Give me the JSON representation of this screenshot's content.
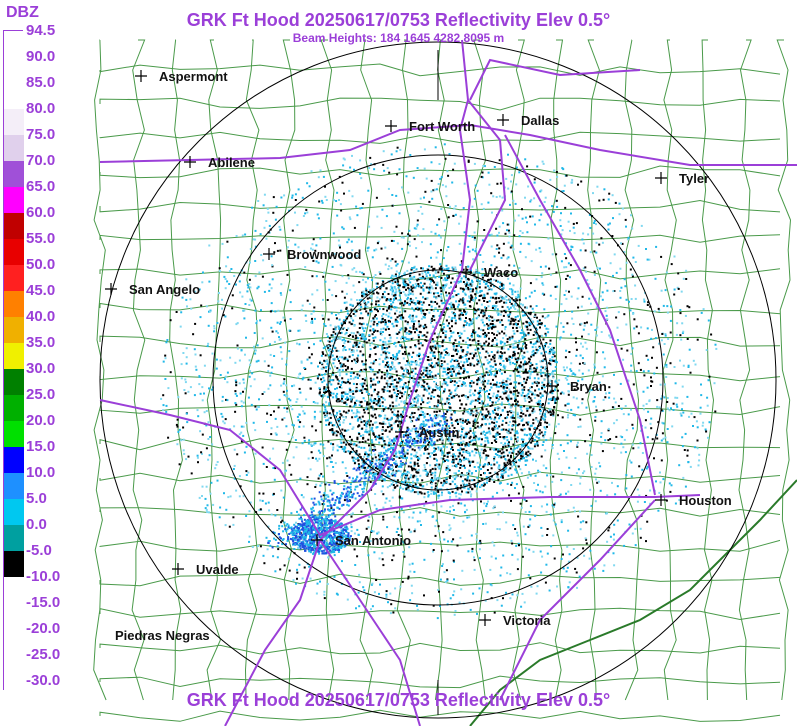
{
  "header": {
    "title": "GRK Ft Hood 20250617/0753 Reflectivity Elev 0.5°",
    "subtitle": "Beam Heights: 184 1645 4282 8095 m",
    "footer": "GRK Ft Hood 20250617/0753 Reflectivity Elev 0.5°"
  },
  "legend": {
    "unit": "DBZ",
    "levels": [
      {
        "label": "94.5",
        "color": "#ffffff"
      },
      {
        "label": "90.0",
        "color": "#ffffff"
      },
      {
        "label": "85.0",
        "color": "#ffffff"
      },
      {
        "label": "80.0",
        "color": "#f4eef8"
      },
      {
        "label": "75.0",
        "color": "#e0d0ec"
      },
      {
        "label": "70.0",
        "color": "#a050d8"
      },
      {
        "label": "65.0",
        "color": "#ff00ff"
      },
      {
        "label": "60.0",
        "color": "#c00000"
      },
      {
        "label": "55.0",
        "color": "#e80000"
      },
      {
        "label": "50.0",
        "color": "#ff2020"
      },
      {
        "label": "45.0",
        "color": "#ff8000"
      },
      {
        "label": "40.0",
        "color": "#f0b000"
      },
      {
        "label": "35.0",
        "color": "#f0f000"
      },
      {
        "label": "30.0",
        "color": "#008000"
      },
      {
        "label": "25.0",
        "color": "#00b000"
      },
      {
        "label": "20.0",
        "color": "#00e000"
      },
      {
        "label": "15.0",
        "color": "#0000ff"
      },
      {
        "label": "10.0",
        "color": "#1e90ff"
      },
      {
        "label": "5.0",
        "color": "#00c8f0"
      },
      {
        "label": "0.0",
        "color": "#00a0a0"
      },
      {
        "label": "-5.0",
        "color": "#000000"
      },
      {
        "label": "-10.0",
        "color": "#ffffff"
      },
      {
        "label": "-15.0",
        "color": "#ffffff"
      },
      {
        "label": "-20.0",
        "color": "#ffffff"
      },
      {
        "label": "-25.0",
        "color": "#ffffff"
      },
      {
        "label": "-30.0",
        "color": "#ffffff"
      }
    ]
  },
  "map": {
    "colors": {
      "counties": "#4a9a4a",
      "highways": "#9b3fd8",
      "range_rings": "#000000",
      "echo_light": "#7fd8f0",
      "echo_mid": "#20b8e8",
      "echo_strong": "#2050e0",
      "echo_weak": "#000000"
    },
    "cities": [
      {
        "name": "Aspermont"
      },
      {
        "name": "Fort Worth"
      },
      {
        "name": "Dallas"
      },
      {
        "name": "Abilene"
      },
      {
        "name": "Tyler"
      },
      {
        "name": "Brownwood"
      },
      {
        "name": "Waco"
      },
      {
        "name": "San Angelo"
      },
      {
        "name": "Bryan"
      },
      {
        "name": "Austin"
      },
      {
        "name": "Houston"
      },
      {
        "name": "San Antonio"
      },
      {
        "name": "Uvalde"
      },
      {
        "name": "Victoria"
      },
      {
        "name": "Piedras Negras"
      }
    ]
  }
}
